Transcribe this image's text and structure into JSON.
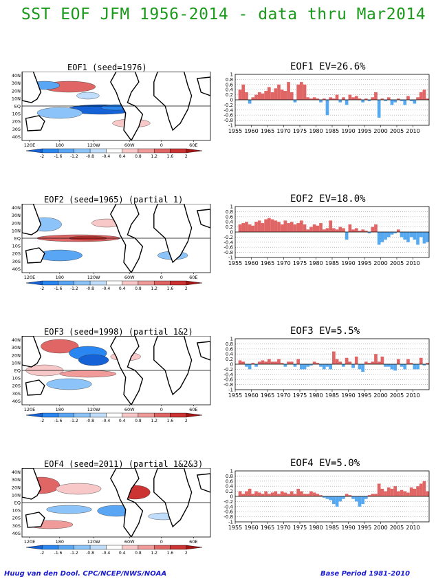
{
  "header": {
    "title": "SST EOF JFM 1956-2014 - data thru Mar2014"
  },
  "map_axes": {
    "lat_labels": [
      "40N",
      "30N",
      "20N",
      "10N",
      "EQ",
      "10S",
      "20S",
      "30S",
      "40S"
    ],
    "lon_labels": [
      "120E",
      "180",
      "120W",
      "60W",
      "0",
      "60E"
    ]
  },
  "colorbar": {
    "tick_labels": [
      "-2",
      "-1.6",
      "-1.2",
      "-0.8",
      "-0.4",
      "0.4",
      "0.8",
      "1.2",
      "1.6",
      "2"
    ],
    "colors": [
      "#1561d6",
      "#2a86f0",
      "#59a6f5",
      "#8cc3f8",
      "#c0defb",
      "#ffffff",
      "#f8c8c8",
      "#f09a9a",
      "#e06666",
      "#cc3333",
      "#a31515"
    ]
  },
  "colors": {
    "positive": "#e06666",
    "negative": "#56a8f0",
    "coast": "#000000",
    "grid": "#999999"
  },
  "panels": [
    {
      "map_title": "EOF1   (seed=1976)",
      "ts_title": "EOF1  EV=26.6%"
    },
    {
      "map_title": "EOF2   (seed=1965)  (partial 1)",
      "ts_title": "EOF2  EV=18.0%"
    },
    {
      "map_title": "EOF3   (seed=1998)  (partial 1&2)",
      "ts_title": "EOF3   EV=5.5%"
    },
    {
      "map_title": "EOF4   (seed=2011)  (partial 1&2&3)",
      "ts_title": "EOF4   EV=5.0%"
    }
  ],
  "chart_data": [
    {
      "type": "bar",
      "title": "EOF1  EV=26.6%",
      "x": [
        1956,
        1957,
        1958,
        1959,
        1960,
        1961,
        1962,
        1963,
        1964,
        1965,
        1966,
        1967,
        1968,
        1969,
        1970,
        1971,
        1972,
        1973,
        1974,
        1975,
        1976,
        1977,
        1978,
        1979,
        1980,
        1981,
        1982,
        1983,
        1984,
        1985,
        1986,
        1987,
        1988,
        1989,
        1990,
        1991,
        1992,
        1993,
        1994,
        1995,
        1996,
        1997,
        1998,
        1999,
        2000,
        2001,
        2002,
        2003,
        2004,
        2005,
        2006,
        2007,
        2008,
        2009,
        2010,
        2011,
        2012,
        2013,
        2014
      ],
      "values": [
        0.4,
        0.6,
        0.3,
        -0.15,
        0.1,
        0.2,
        0.3,
        0.25,
        0.35,
        0.5,
        0.3,
        0.45,
        0.6,
        0.4,
        0.35,
        0.7,
        0.3,
        -0.1,
        0.6,
        0.7,
        0.6,
        0.1,
        0.05,
        0.1,
        0.05,
        -0.1,
        0.05,
        -0.6,
        0.1,
        0.05,
        0.2,
        -0.1,
        0.1,
        -0.2,
        0.2,
        0.1,
        0.15,
        0.05,
        -0.1,
        0.05,
        -0.05,
        0.1,
        0.3,
        -0.7,
        0.05,
        -0.05,
        0.1,
        -0.2,
        -0.1,
        0.05,
        -0.05,
        -0.2,
        0.15,
        -0.05,
        -0.15,
        0.1,
        0.3,
        0.4,
        0.05
      ],
      "xlim": [
        1955,
        2014
      ],
      "xticks": [
        1955,
        1960,
        1965,
        1970,
        1975,
        1980,
        1985,
        1990,
        1995,
        2000,
        2005,
        2010
      ],
      "ylim": [
        -1,
        1
      ],
      "yticks": [
        "-1",
        "-0.8",
        "-0.6",
        "-0.4",
        "-0.2",
        "0",
        "0.2",
        "0.4",
        "0.6",
        "0.8",
        "1"
      ],
      "ygrid_dotted": true
    },
    {
      "type": "bar",
      "title": "EOF2  EV=18.0%",
      "x": [
        1956,
        1957,
        1958,
        1959,
        1960,
        1961,
        1962,
        1963,
        1964,
        1965,
        1966,
        1967,
        1968,
        1969,
        1970,
        1971,
        1972,
        1973,
        1974,
        1975,
        1976,
        1977,
        1978,
        1979,
        1980,
        1981,
        1982,
        1983,
        1984,
        1985,
        1986,
        1987,
        1988,
        1989,
        1990,
        1991,
        1992,
        1993,
        1994,
        1995,
        1996,
        1997,
        1998,
        1999,
        2000,
        2001,
        2002,
        2003,
        2004,
        2005,
        2006,
        2007,
        2008,
        2009,
        2010,
        2011,
        2012,
        2013,
        2014
      ],
      "values": [
        0.3,
        0.35,
        0.4,
        0.3,
        0.25,
        0.4,
        0.45,
        0.35,
        0.5,
        0.55,
        0.5,
        0.45,
        0.4,
        0.3,
        0.45,
        0.35,
        0.4,
        0.3,
        0.35,
        0.45,
        0.3,
        0.1,
        0.2,
        0.3,
        0.25,
        0.35,
        0.1,
        0.15,
        0.45,
        0.15,
        0.1,
        0.2,
        0.15,
        -0.3,
        0.3,
        0.1,
        0.15,
        0.05,
        0.1,
        0.05,
        -0.05,
        0.2,
        0.3,
        -0.5,
        -0.4,
        -0.3,
        -0.2,
        -0.1,
        -0.05,
        0.1,
        -0.2,
        -0.3,
        -0.4,
        -0.2,
        -0.3,
        -0.5,
        -0.2,
        -0.45,
        -0.4
      ],
      "xlim": [
        1955,
        2014
      ],
      "xticks": [
        1955,
        1960,
        1965,
        1970,
        1975,
        1980,
        1985,
        1990,
        1995,
        2000,
        2005,
        2010
      ],
      "ylim": [
        -1,
        1
      ],
      "yticks": [
        "-1",
        "-0.8",
        "-0.6",
        "-0.4",
        "-0.2",
        "0",
        "0.2",
        "0.4",
        "0.6",
        "0.8",
        "1"
      ],
      "ygrid_dotted": true
    },
    {
      "type": "bar",
      "title": "EOF3   EV=5.5%",
      "x": [
        1956,
        1957,
        1958,
        1959,
        1960,
        1961,
        1962,
        1963,
        1964,
        1965,
        1966,
        1967,
        1968,
        1969,
        1970,
        1971,
        1972,
        1973,
        1974,
        1975,
        1976,
        1977,
        1978,
        1979,
        1980,
        1981,
        1982,
        1983,
        1984,
        1985,
        1986,
        1987,
        1988,
        1989,
        1990,
        1991,
        1992,
        1993,
        1994,
        1995,
        1996,
        1997,
        1998,
        1999,
        2000,
        2001,
        2002,
        2003,
        2004,
        2005,
        2006,
        2007,
        2008,
        2009,
        2010,
        2011,
        2012,
        2013,
        2014
      ],
      "values": [
        0.15,
        0.1,
        -0.1,
        -0.2,
        0.05,
        -0.1,
        0.1,
        0.15,
        0.1,
        0.2,
        0.1,
        0.1,
        0.2,
        0.05,
        -0.1,
        0.1,
        0.1,
        -0.1,
        0.2,
        -0.2,
        -0.2,
        -0.1,
        -0.05,
        0.1,
        0.05,
        -0.1,
        -0.2,
        -0.1,
        -0.2,
        0.5,
        0.2,
        0.1,
        -0.1,
        0.25,
        0.1,
        -0.15,
        0.3,
        -0.2,
        -0.3,
        0.1,
        0.05,
        0.1,
        0.4,
        0.1,
        0.3,
        -0.1,
        -0.1,
        -0.2,
        -0.25,
        0.2,
        -0.1,
        -0.2,
        0.2,
        0.05,
        -0.2,
        -0.2,
        0.25,
        -0.05,
        0.05
      ],
      "xlim": [
        1955,
        2014
      ],
      "xticks": [
        1955,
        1960,
        1965,
        1970,
        1975,
        1980,
        1985,
        1990,
        1995,
        2000,
        2005,
        2010
      ],
      "ylim": [
        -1,
        1
      ],
      "yticks": [
        "-1",
        "-0.8",
        "-0.6",
        "-0.4",
        "-0.2",
        "0",
        "0.2",
        "0.4",
        "0.6",
        "0.8",
        "1"
      ],
      "ygrid_dotted": true
    },
    {
      "type": "bar",
      "title": "EOF4   EV=5.0%",
      "x": [
        1956,
        1957,
        1958,
        1959,
        1960,
        1961,
        1962,
        1963,
        1964,
        1965,
        1966,
        1967,
        1968,
        1969,
        1970,
        1971,
        1972,
        1973,
        1974,
        1975,
        1976,
        1977,
        1978,
        1979,
        1980,
        1981,
        1982,
        1983,
        1984,
        1985,
        1986,
        1987,
        1988,
        1989,
        1990,
        1991,
        1992,
        1993,
        1994,
        1995,
        1996,
        1997,
        1998,
        1999,
        2000,
        2001,
        2002,
        2003,
        2004,
        2005,
        2006,
        2007,
        2008,
        2009,
        2010,
        2011,
        2012,
        2013,
        2014
      ],
      "values": [
        0.2,
        0.1,
        0.2,
        0.3,
        0.1,
        0.2,
        0.15,
        0.1,
        0.2,
        0.1,
        0.15,
        0.2,
        0.1,
        0.2,
        0.15,
        0.1,
        0.2,
        0.1,
        0.3,
        0.2,
        0.1,
        0.1,
        0.2,
        0.15,
        0.1,
        0.05,
        -0.05,
        -0.1,
        -0.15,
        -0.3,
        -0.4,
        -0.2,
        -0.1,
        0.1,
        0.05,
        -0.1,
        -0.2,
        -0.4,
        -0.3,
        -0.1,
        0.05,
        0.1,
        0.1,
        0.5,
        0.3,
        0.2,
        0.35,
        0.3,
        0.4,
        0.2,
        0.25,
        0.2,
        0.15,
        0.35,
        0.3,
        0.4,
        0.5,
        0.6,
        0.2
      ],
      "xlim": [
        1955,
        2014
      ],
      "xticks": [
        1955,
        1960,
        1965,
        1970,
        1975,
        1980,
        1985,
        1990,
        1995,
        2000,
        2005,
        2010
      ],
      "ylim": [
        -1,
        1
      ],
      "yticks": [
        "-1",
        "-0.8",
        "-0.6",
        "-0.4",
        "-0.2",
        "0",
        "0.2",
        "0.4",
        "0.6",
        "0.8",
        "1"
      ],
      "ygrid_dotted": true
    }
  ],
  "footer": {
    "left": "Huug van den Dool. CPC/NCEP/NWS/NOAA",
    "right": "Base Period  1981-2010"
  }
}
